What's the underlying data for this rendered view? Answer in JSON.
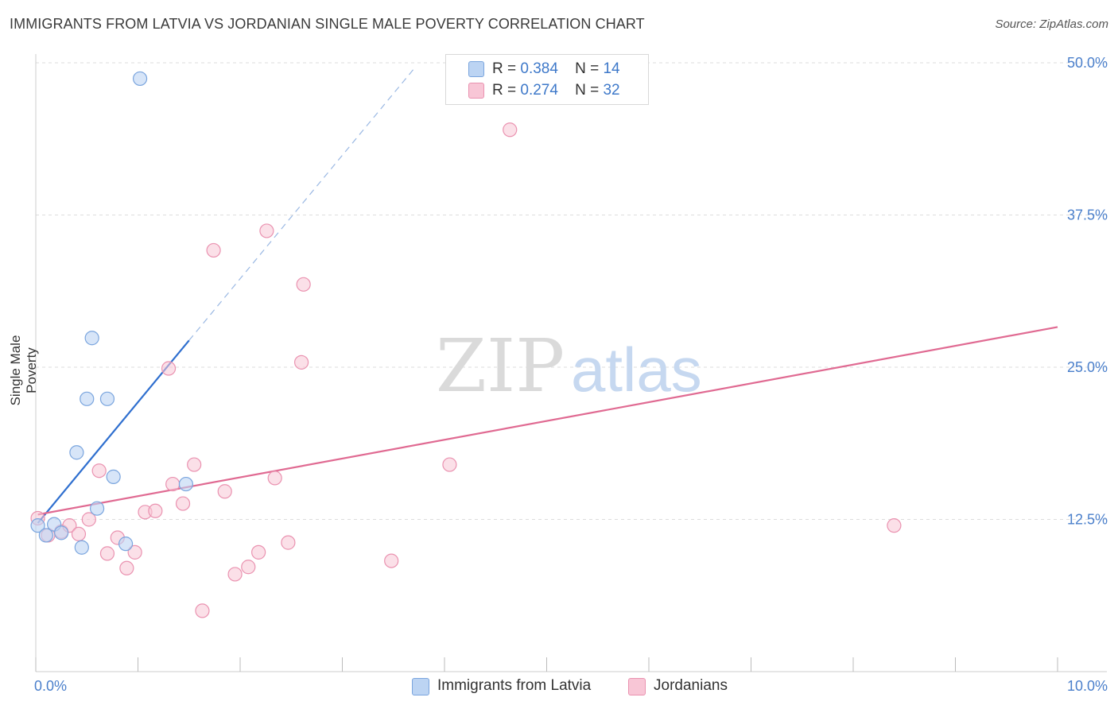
{
  "title": "IMMIGRANTS FROM LATVIA VS JORDANIAN SINGLE MALE POVERTY CORRELATION CHART",
  "source": "Source: ZipAtlas.com",
  "watermark": {
    "zip": "ZIP",
    "atlas": "atlas"
  },
  "colors": {
    "blue_fill": "#bcd4f3",
    "blue_stroke": "#7aa5de",
    "blue_line": "#2f6fcf",
    "pink_fill": "#f8c6d6",
    "pink_stroke": "#ea92b0",
    "pink_line": "#e06a92",
    "axis_text": "#4a7fcb",
    "grid": "#dddddd"
  },
  "legend": {
    "rows": [
      {
        "r_label": "R =",
        "r_value": "0.384",
        "n_label": "N =",
        "n_value": "14"
      },
      {
        "r_label": "R =",
        "r_value": "0.274",
        "n_label": "N =",
        "n_value": "32"
      }
    ]
  },
  "bottom_legend": [
    {
      "label": "Immigrants from Latvia"
    },
    {
      "label": "Jordanians"
    }
  ],
  "chart_data": {
    "type": "scatter",
    "title": "IMMIGRANTS FROM LATVIA VS JORDANIAN SINGLE MALE POVERTY CORRELATION CHART",
    "xlabel": "",
    "ylabel": "Single Male Poverty",
    "xlim": [
      0,
      10
    ],
    "ylim": [
      0,
      50
    ],
    "x_tick_labels": [
      "0.0%",
      "10.0%"
    ],
    "y_tick_labels": [
      "12.5%",
      "25.0%",
      "37.5%",
      "50.0%"
    ],
    "y_ticks": [
      12.5,
      25,
      37.5,
      50
    ],
    "series": [
      {
        "name": "Immigrants from Latvia",
        "color": "blue",
        "r": 0.384,
        "n": 14,
        "points": [
          {
            "x": 0.02,
            "y": 12.0
          },
          {
            "x": 0.1,
            "y": 11.2
          },
          {
            "x": 0.18,
            "y": 12.1
          },
          {
            "x": 0.25,
            "y": 11.4
          },
          {
            "x": 0.4,
            "y": 18.0
          },
          {
            "x": 0.45,
            "y": 10.2
          },
          {
            "x": 0.5,
            "y": 22.4
          },
          {
            "x": 0.55,
            "y": 27.4
          },
          {
            "x": 0.6,
            "y": 13.4
          },
          {
            "x": 0.7,
            "y": 22.4
          },
          {
            "x": 0.76,
            "y": 16.0
          },
          {
            "x": 0.88,
            "y": 10.5
          },
          {
            "x": 1.02,
            "y": 48.7
          },
          {
            "x": 1.47,
            "y": 15.4
          }
        ],
        "trend": {
          "x0": 0.02,
          "y0": 12.2,
          "x1": 1.5,
          "y1": 27.2,
          "dashed_to_x": 3.7
        }
      },
      {
        "name": "Jordanians",
        "color": "pink",
        "r": 0.274,
        "n": 32,
        "points": [
          {
            "x": 0.02,
            "y": 12.6
          },
          {
            "x": 0.12,
            "y": 11.2
          },
          {
            "x": 0.25,
            "y": 11.5
          },
          {
            "x": 0.33,
            "y": 12.0
          },
          {
            "x": 0.42,
            "y": 11.3
          },
          {
            "x": 0.52,
            "y": 12.5
          },
          {
            "x": 0.62,
            "y": 16.5
          },
          {
            "x": 0.7,
            "y": 9.7
          },
          {
            "x": 0.8,
            "y": 11.0
          },
          {
            "x": 0.89,
            "y": 8.5
          },
          {
            "x": 0.97,
            "y": 9.8
          },
          {
            "x": 1.07,
            "y": 13.1
          },
          {
            "x": 1.17,
            "y": 13.2
          },
          {
            "x": 1.3,
            "y": 24.9
          },
          {
            "x": 1.34,
            "y": 15.4
          },
          {
            "x": 1.44,
            "y": 13.8
          },
          {
            "x": 1.55,
            "y": 17.0
          },
          {
            "x": 1.63,
            "y": 5.0
          },
          {
            "x": 1.74,
            "y": 34.6
          },
          {
            "x": 1.85,
            "y": 14.8
          },
          {
            "x": 1.95,
            "y": 8.0
          },
          {
            "x": 2.08,
            "y": 8.6
          },
          {
            "x": 2.18,
            "y": 9.8
          },
          {
            "x": 2.26,
            "y": 36.2
          },
          {
            "x": 2.34,
            "y": 15.9
          },
          {
            "x": 2.47,
            "y": 10.6
          },
          {
            "x": 2.6,
            "y": 25.4
          },
          {
            "x": 2.62,
            "y": 31.8
          },
          {
            "x": 3.48,
            "y": 9.1
          },
          {
            "x": 4.05,
            "y": 17.0
          },
          {
            "x": 4.64,
            "y": 44.5
          },
          {
            "x": 8.4,
            "y": 12.0
          }
        ],
        "trend": {
          "x0": 0.02,
          "y0": 12.9,
          "x1": 10.0,
          "y1": 28.3
        }
      }
    ]
  }
}
